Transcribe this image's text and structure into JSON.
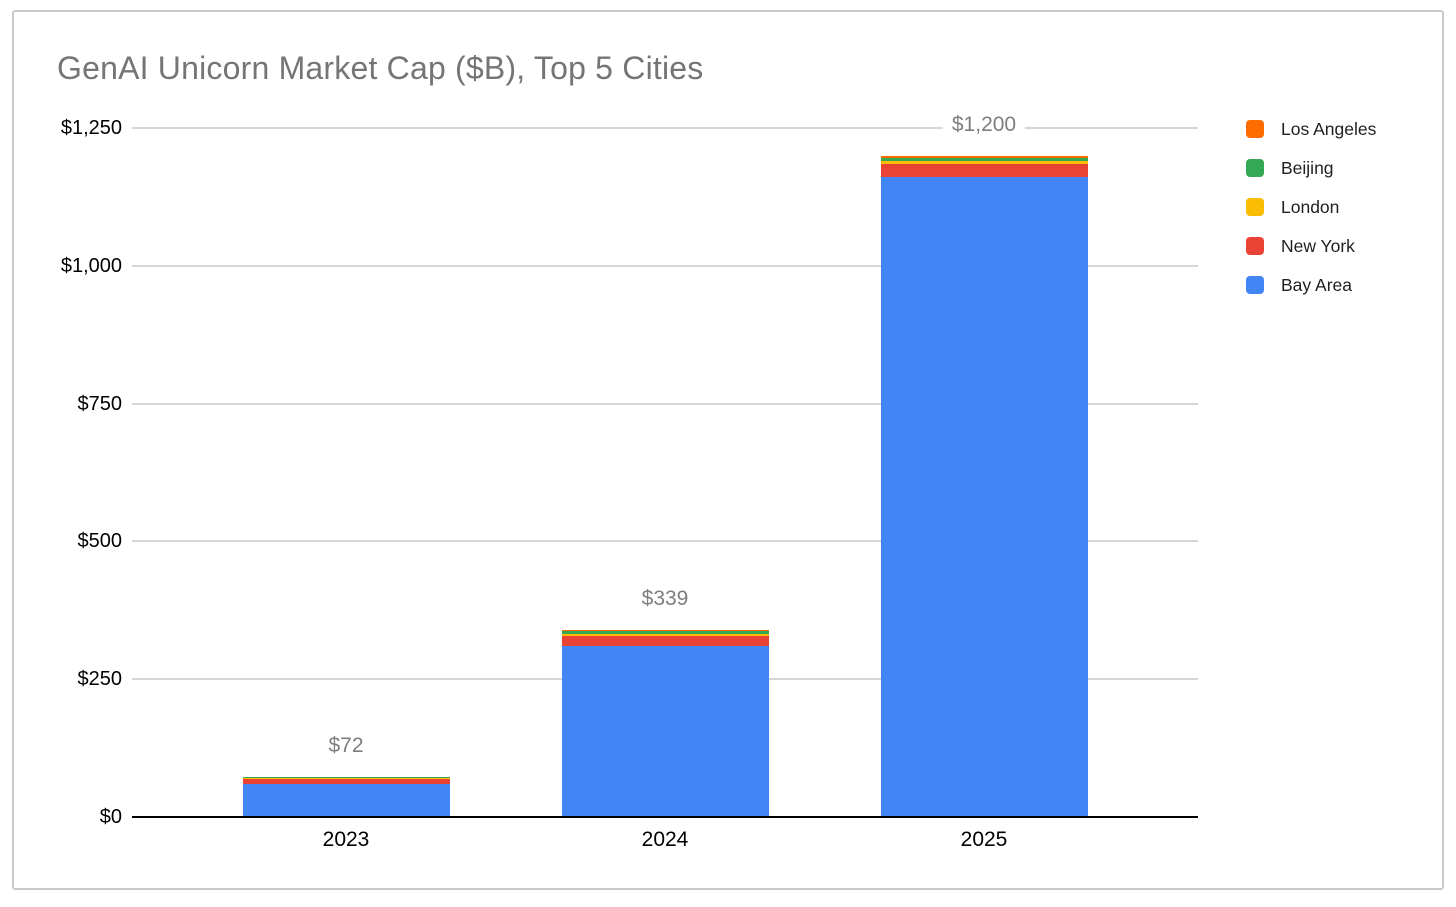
{
  "chart_data": {
    "type": "bar",
    "stacked": true,
    "title": "GenAI Unicorn Market Cap ($B), Top 5 Cities",
    "categories": [
      "2023",
      "2024",
      "2025"
    ],
    "series": [
      {
        "name": "Bay Area",
        "color": "#4285F4",
        "values": [
          60,
          311,
          1162
        ]
      },
      {
        "name": "New York",
        "color": "#EA4335",
        "values": [
          9,
          18,
          22
        ]
      },
      {
        "name": "London",
        "color": "#FBBC04",
        "values": [
          1,
          3,
          6
        ]
      },
      {
        "name": "Beijing",
        "color": "#34A853",
        "values": [
          2,
          5,
          6
        ]
      },
      {
        "name": "Los Angeles",
        "color": "#FF6D01",
        "values": [
          0,
          2,
          4
        ]
      }
    ],
    "stack_order": "bottom-to-top",
    "totals": [
      72,
      339,
      1200
    ],
    "total_labels": [
      "$72",
      "$339",
      "$1,200"
    ],
    "y_axis": {
      "ticks": [
        {
          "value": 0,
          "label": "$0"
        },
        {
          "value": 250,
          "label": "$250"
        },
        {
          "value": 500,
          "label": "$500"
        },
        {
          "value": 750,
          "label": "$750"
        },
        {
          "value": 1000,
          "label": "$1,000"
        },
        {
          "value": 1250,
          "label": "$1,250"
        }
      ]
    },
    "ylim": [
      0,
      1250
    ],
    "xlabel": "",
    "ylabel": "",
    "grid": true,
    "legend": {
      "position": "right",
      "items": [
        "Los Angeles",
        "Beijing",
        "London",
        "New York",
        "Bay Area"
      ]
    },
    "colors": {
      "title_text": "#757575",
      "total_label_text": "#7e7e7e",
      "tick_text": "#000000",
      "gridline": "#d6d6d6",
      "axis_line": "#000000"
    }
  }
}
